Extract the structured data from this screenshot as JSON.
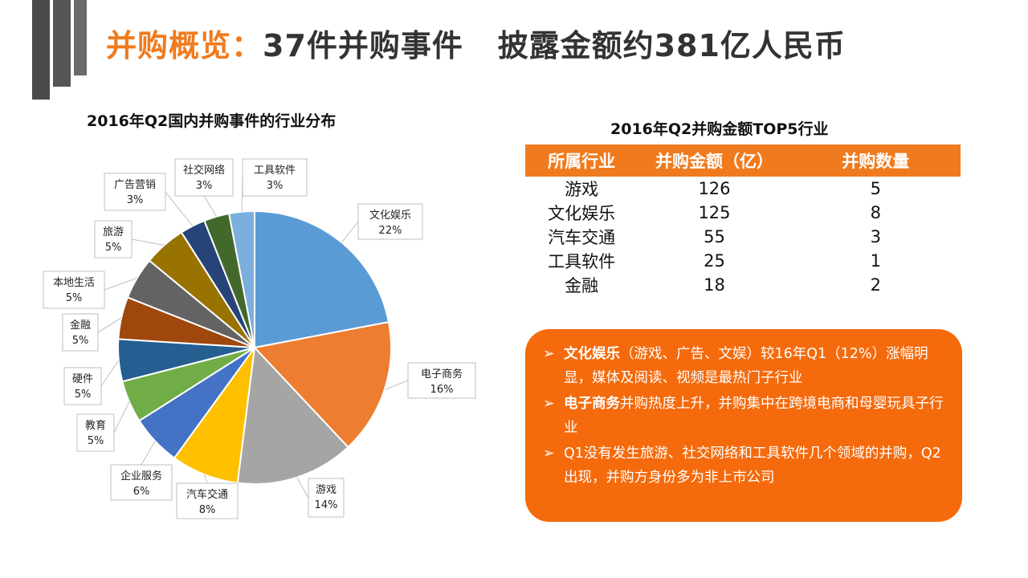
{
  "slide_title": {
    "highlight": "并购概览：",
    "rest": "37件并购事件   披露金额约381亿人民币"
  },
  "chart_data": {
    "type": "pie",
    "title": "2016年Q2国内并购事件的行业分布",
    "slices": [
      {
        "label": "文化娱乐",
        "pct_label": "22%",
        "value": 22,
        "color": "#5b9bd5"
      },
      {
        "label": "电子商务",
        "pct_label": "16%",
        "value": 16,
        "color": "#ed7d31"
      },
      {
        "label": "游戏",
        "pct_label": "14%",
        "value": 14,
        "color": "#a5a5a5"
      },
      {
        "label": "汽车交通",
        "pct_label": "8%",
        "value": 8,
        "color": "#ffc000"
      },
      {
        "label": "企业服务",
        "pct_label": "6%",
        "value": 6,
        "color": "#4472c4"
      },
      {
        "label": "教育",
        "pct_label": "5%",
        "value": 5,
        "color": "#70ad47"
      },
      {
        "label": "硬件",
        "pct_label": "5%",
        "value": 5,
        "color": "#255e91"
      },
      {
        "label": "金融",
        "pct_label": "5%",
        "value": 5,
        "color": "#9e480e"
      },
      {
        "label": "本地生活",
        "pct_label": "5%",
        "value": 5,
        "color": "#636363"
      },
      {
        "label": "旅游",
        "pct_label": "5%",
        "value": 5,
        "color": "#997300"
      },
      {
        "label": "广告营销",
        "pct_label": "3%",
        "value": 3,
        "color": "#264478"
      },
      {
        "label": "社交网络",
        "pct_label": "3%",
        "value": 3,
        "color": "#43682b"
      },
      {
        "label": "工具软件",
        "pct_label": "3%",
        "value": 3,
        "color": "#7cafdd"
      }
    ]
  },
  "table": {
    "title": "2016年Q2并购金额TOP5行业",
    "headers": [
      "所属行业",
      "并购金额（亿）",
      "并购数量"
    ],
    "rows": [
      [
        "游戏",
        "126",
        "5"
      ],
      [
        "文化娱乐",
        "125",
        "8"
      ],
      [
        "汽车交通",
        "55",
        "3"
      ],
      [
        "工具软件",
        "25",
        "1"
      ],
      [
        "金融",
        "18",
        "2"
      ]
    ]
  },
  "insights": [
    {
      "bullet": "➢",
      "bold": "文化娱乐",
      "text": "（游戏、广告、文娱）较16年Q1（12%）涨幅明显，媒体及阅读、视频是最热门子行业"
    },
    {
      "bullet": "➢",
      "bold": "电子商务",
      "text": "并购热度上升，并购集中在跨境电商和母婴玩具子行业"
    },
    {
      "bullet": "➢",
      "bold": "",
      "text": "Q1没有发生旅游、社交网络和工具软件几个领域的并购，Q2出现，并购方身份多为非上市公司"
    }
  ]
}
